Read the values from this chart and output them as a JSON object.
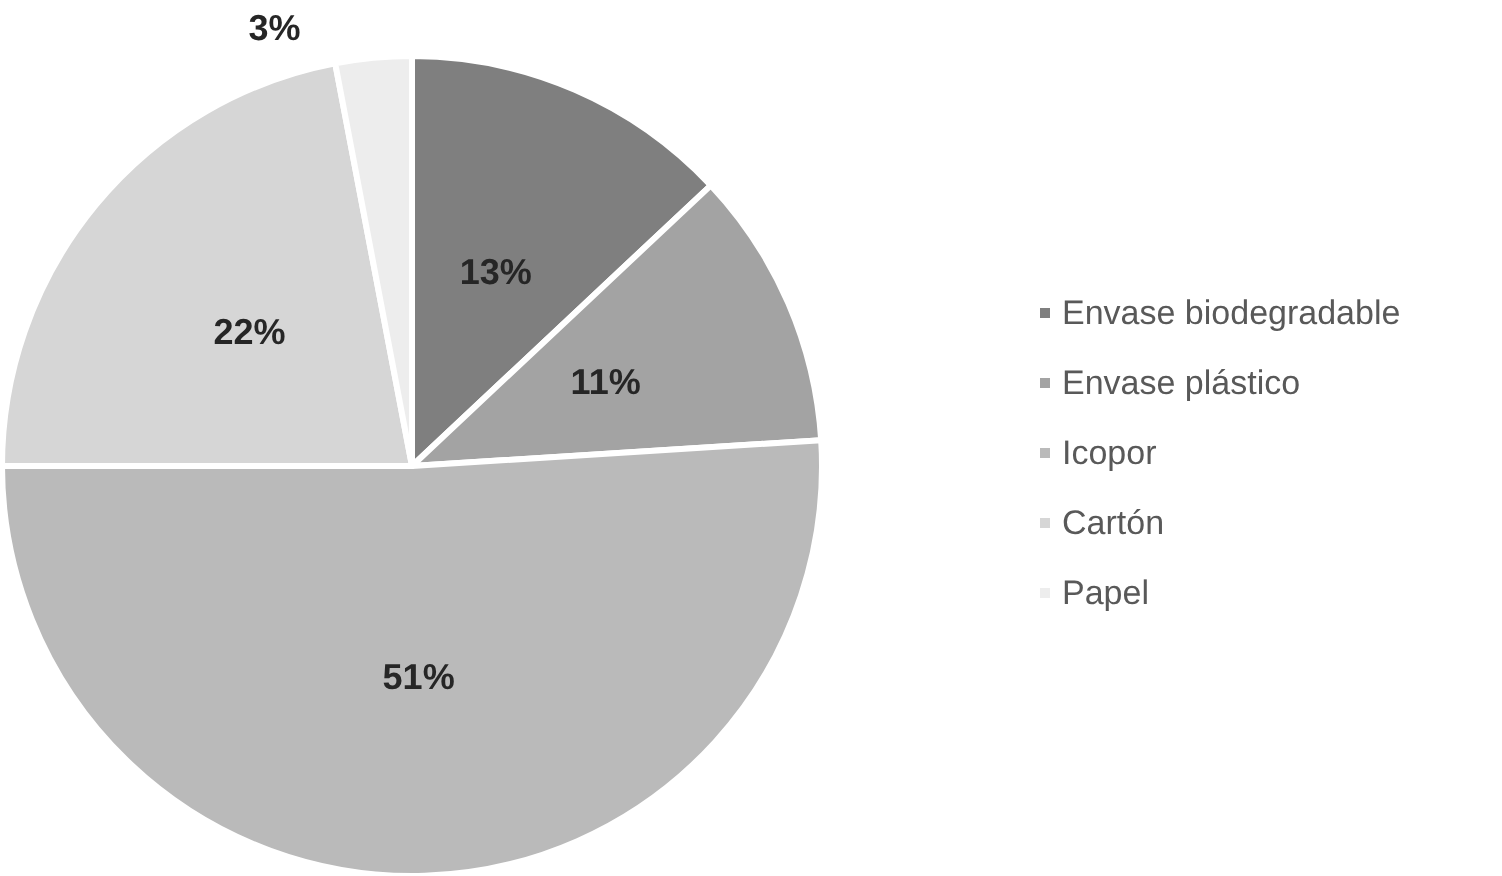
{
  "chart_data": {
    "type": "pie",
    "categories": [
      "Envase biodegradable",
      "Envase plástico",
      "Icopor",
      "Cartón",
      "Papel"
    ],
    "values": [
      13,
      11,
      51,
      22,
      3
    ],
    "colors": [
      "#7f7f7f",
      "#a3a3a3",
      "#bababa",
      "#d6d6d6",
      "#ededed"
    ],
    "value_labels": [
      "13%",
      "11%",
      "51%",
      "22%",
      "3%"
    ],
    "legend": "right"
  }
}
